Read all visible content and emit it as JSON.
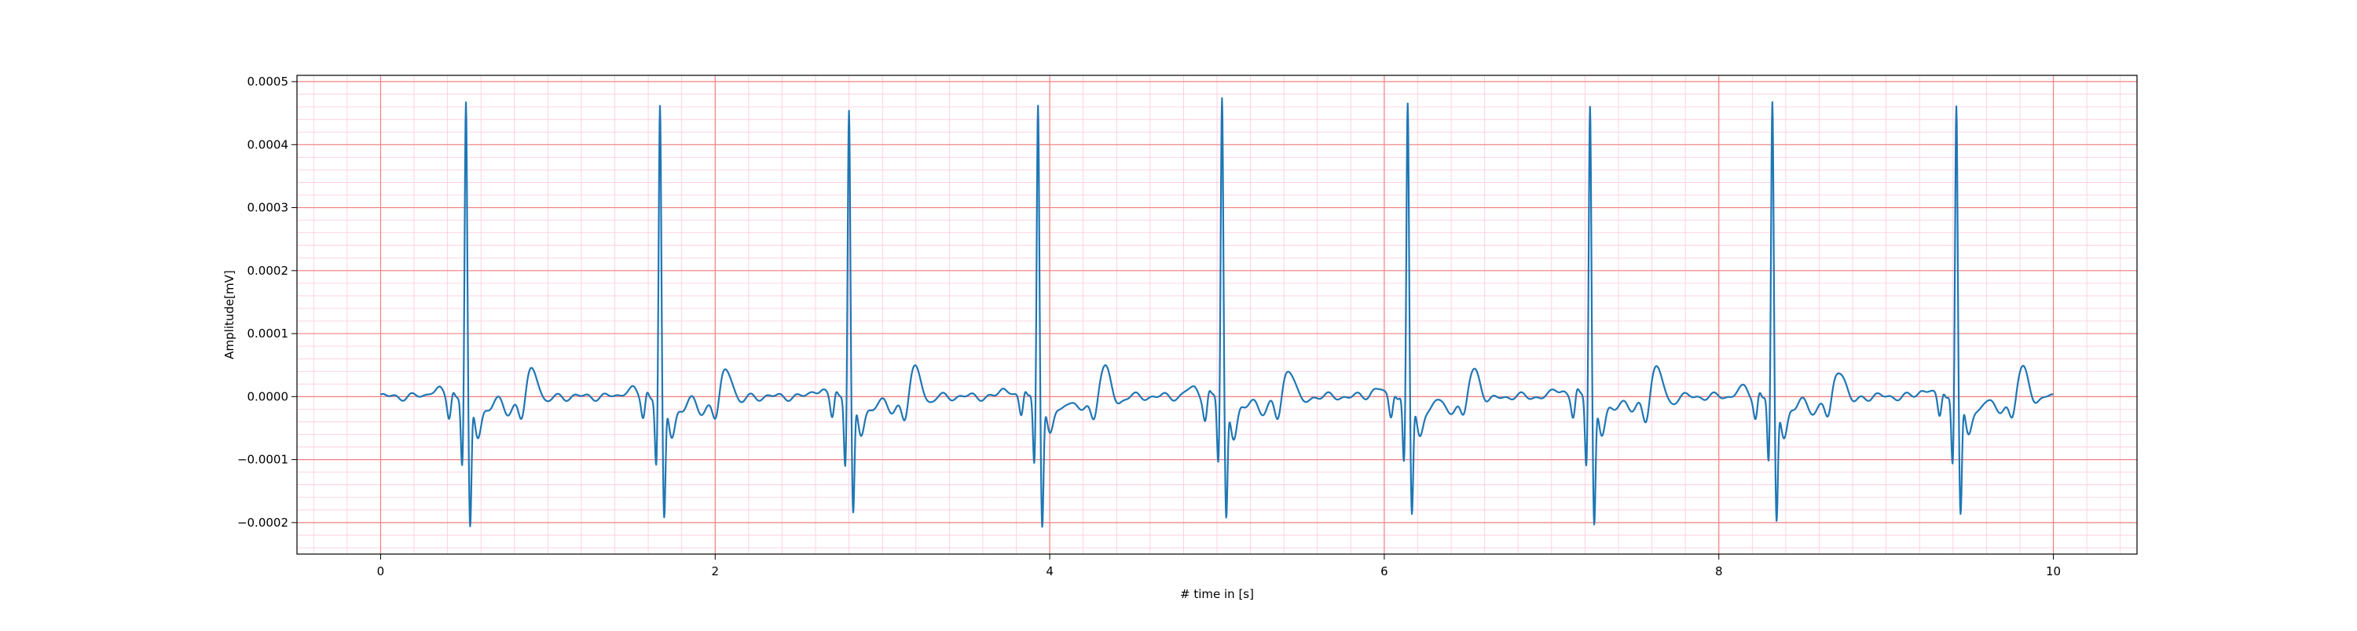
{
  "chart_data": {
    "type": "line",
    "title": "",
    "xlabel": "# time in [s]",
    "ylabel": "Amplitude[mV]",
    "xlim": [
      -0.5,
      10.5
    ],
    "ylim": [
      -0.00025,
      0.00051
    ],
    "x_ticks": [
      0,
      2,
      4,
      6,
      8,
      10
    ],
    "x_tick_labels": [
      "0",
      "2",
      "4",
      "6",
      "8",
      "10"
    ],
    "y_ticks": [
      -0.0002,
      -0.0001,
      0.0,
      0.0001,
      0.0002,
      0.0003,
      0.0004,
      0.0005
    ],
    "y_tick_labels": [
      "−0.0002",
      "−0.0001",
      "0.0000",
      "0.0001",
      "0.0002",
      "0.0003",
      "0.0004",
      "0.0005"
    ],
    "grid": true,
    "grid_major_color": "#f08080",
    "grid_minor_color": "#ffc8dc",
    "line_color": "#1f77b4",
    "signal": {
      "sample_interval_s": 0.01,
      "heartbeats": [
        {
          "t": 0.51,
          "peak": 0.00047,
          "trough": -0.00021
        },
        {
          "t": 1.67,
          "peak": 0.000462,
          "trough": -0.000195
        },
        {
          "t": 2.8,
          "peak": 0.000462,
          "trough": -0.000185
        },
        {
          "t": 3.93,
          "peak": 0.000472,
          "trough": -0.0002
        },
        {
          "t": 5.03,
          "peak": 0.000475,
          "trough": -0.00019
        },
        {
          "t": 6.14,
          "peak": 0.000468,
          "trough": -0.000185
        },
        {
          "t": 7.23,
          "peak": 0.00047,
          "trough": -0.0002
        },
        {
          "t": 8.32,
          "peak": 0.000465,
          "trough": -0.000195
        },
        {
          "t": 9.42,
          "peak": 0.000468,
          "trough": -0.000185
        }
      ]
    }
  }
}
